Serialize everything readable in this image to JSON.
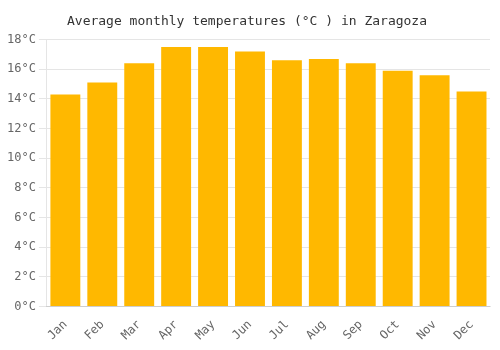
{
  "chart_data": {
    "type": "bar",
    "title": "Average monthly temperatures (°C ) in Zaragoza",
    "categories": [
      "Jan",
      "Feb",
      "Mar",
      "Apr",
      "May",
      "Jun",
      "Jul",
      "Aug",
      "Sep",
      "Oct",
      "Nov",
      "Dec"
    ],
    "values": [
      14.3,
      15.1,
      16.4,
      17.5,
      17.5,
      17.2,
      16.6,
      16.7,
      16.4,
      15.9,
      15.6,
      14.5
    ],
    "color": "#FFB800",
    "ylim": [
      0,
      18
    ],
    "yticks": [
      {
        "value": 0,
        "label": "0°C"
      },
      {
        "value": 2,
        "label": "2°C"
      },
      {
        "value": 4,
        "label": "4°C"
      },
      {
        "value": 6,
        "label": "6°C"
      },
      {
        "value": 8,
        "label": "8°C"
      },
      {
        "value": 10,
        "label": "10°C"
      },
      {
        "value": 12,
        "label": "12°C"
      },
      {
        "value": 14,
        "label": "14°C"
      },
      {
        "value": 16,
        "label": "16°C"
      },
      {
        "value": 18,
        "label": "18°C"
      }
    ],
    "grid": true
  }
}
